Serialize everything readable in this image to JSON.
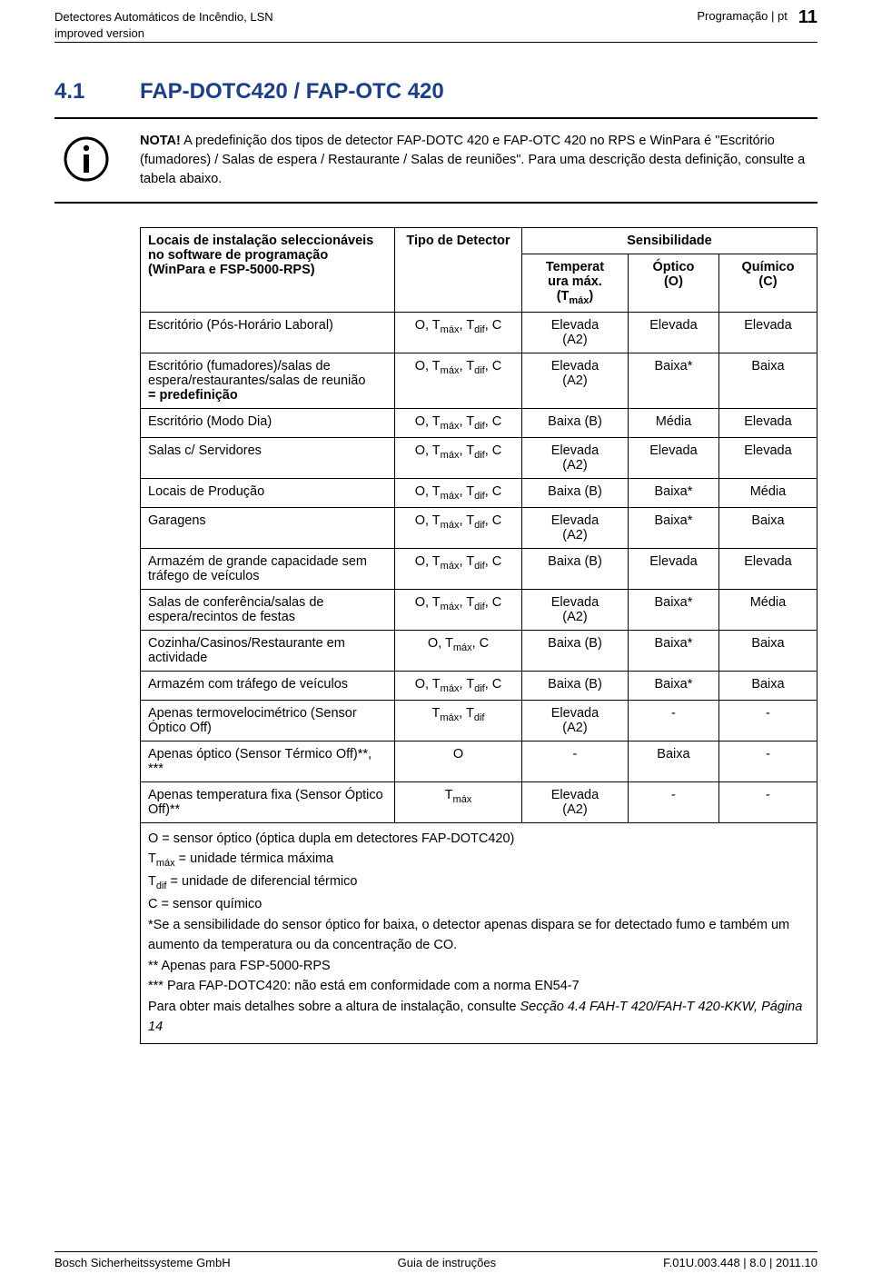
{
  "header": {
    "left_line1": "Detectores Automáticos de Incêndio, LSN",
    "left_line2": "improved version",
    "right_label": "Programação | pt",
    "page_number": "11"
  },
  "section": {
    "number": "4.1",
    "title": "FAP-DOTC420 / FAP-OTC 420"
  },
  "note": {
    "label": "NOTA!",
    "body": "A predefinição dos tipos de detector FAP-DOTC 420 e FAP-OTC 420 no RPS e WinPara é \"Escritório (fumadores) / Salas de espera / Restaurante / Salas de reuniões\". Para uma descrição desta definição, consulte a tabela abaixo."
  },
  "table": {
    "head": {
      "locais": "Locais de instalação seleccionáveis no software de programação (WinPara e FSP-5000-RPS)",
      "tipo": "Tipo de Detector",
      "sens": "Sensibilidade",
      "temp_html": "Temperat<br>ura máx.<br>(T<sub>máx</sub>)",
      "optico_html": "Óptico<br>(O)",
      "quimico_html": "Químico<br>(C)"
    },
    "det_std_html": "O, T<sub>máx</sub>, T<sub>dif</sub>, C",
    "det_otmax_c_html": "O, T<sub>máx</sub>, C",
    "det_tmax_tdif_html": "T<sub>máx</sub>, T<sub>dif</sub>",
    "det_o": "O",
    "det_tmax_html": "T<sub>máx</sub>",
    "elevada_a2_html": "Elevada<br>(A2)",
    "baixa_b": "Baixa (B)",
    "elevada": "Elevada",
    "media": "Média",
    "baixa": "Baixa",
    "baixa_star": "Baixa*",
    "dash": "-",
    "rows": {
      "r1": "Escritório (Pós-Horário Laboral)",
      "r2_html": "Escritório (fumadores)/salas de espera/restaurantes/salas de reunião<br><b>= predefinição</b>",
      "r3": "Escritório (Modo Dia)",
      "r4": "Salas c/ Servidores",
      "r5": "Locais de Produção",
      "r6": "Garagens",
      "r7": "Armazém de grande capacidade sem tráfego de veículos",
      "r8": "Salas de conferência/salas de espera/recintos de festas",
      "r9": "Cozinha/Casinos/Restaurante em actividade",
      "r10": "Armazém com tráfego de veículos",
      "r11": "Apenas termovelocimétrico (Sensor Óptico Off)",
      "r12": "Apenas óptico (Sensor Térmico Off)**, ***",
      "r13": "Apenas temperatura fixa (Sensor Óptico Off)**"
    },
    "footnotes": {
      "f1_html": "O = sensor óptico (óptica dupla em detectores FAP-DOTC420)",
      "f2_html": "T<sub>máx</sub> = unidade térmica máxima",
      "f3_html": "T<sub>dif</sub> = unidade de diferencial térmico",
      "f4_html": "C = sensor químico",
      "f5_html": "*Se a sensibilidade do sensor óptico for baixa, o detector apenas dispara se for detectado fumo e também um aumento da temperatura ou da concentração de CO.",
      "f6_html": "** Apenas para FSP-5000-RPS",
      "f7_html": "*** Para FAP-DOTC420: não está em conformidade com a norma EN54-7",
      "f8_html": "Para obter mais detalhes sobre a altura de instalação, consulte <span class=\"italic\">Secção 4.4 FAH-T 420/FAH-T 420-KKW, Página 14</span>"
    }
  },
  "footer": {
    "left": "Bosch Sicherheitssysteme GmbH",
    "center": "Guia de instruções",
    "right": "F.01U.003.448 | 8.0 | 2011.10"
  }
}
